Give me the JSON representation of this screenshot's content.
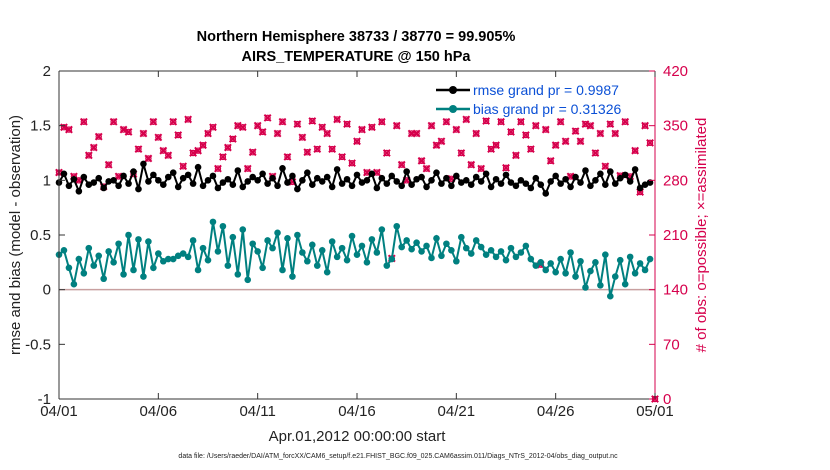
{
  "chart_data": {
    "type": "line",
    "title": "Northern Hemisphere 38733 / 38770 = 99.905%",
    "subtitle": "AIRS_TEMPERATURE @ 150 hPa",
    "xlabel": "Apr.01,2012 00:00:00 start",
    "ylabel": "rmse and bias (model - observation)",
    "ylabel_right": "# of obs: o=possible; ×=assimilated",
    "footnote": "data file: /Users/raeder/DAI/ATM_forcXX/CAM6_setup/f.e21.FHIST_BGC.f09_025.CAM6assim.011/Diags_NTrS_2012-04/obs_diag_output.nc",
    "xlim": [
      0,
      30
    ],
    "ylim": [
      -1,
      2
    ],
    "ylim_right": [
      0,
      420
    ],
    "x_ticks": [
      0,
      5,
      10,
      15,
      20,
      25,
      30
    ],
    "x_tick_labels": [
      "04/01",
      "04/06",
      "04/11",
      "04/16",
      "04/21",
      "04/26",
      "05/01"
    ],
    "y_ticks": [
      -1,
      -0.5,
      0,
      0.5,
      1,
      1.5,
      2
    ],
    "y_tick_labels": [
      "-1",
      "-0.5",
      "0",
      "0.5",
      "1",
      "1.5",
      "2"
    ],
    "y_ticks_right": [
      0,
      70,
      140,
      210,
      280,
      350,
      420
    ],
    "y_tick_labels_right": [
      "0",
      "70",
      "140",
      "210",
      "280",
      "350",
      "420"
    ],
    "grid": false,
    "legend_position": "top-right",
    "colors": {
      "rmse": "#000000",
      "bias": "#008080",
      "obs": "#d6004c",
      "zero_line": "#c8a0a0",
      "legend_text": "#0b50d6"
    },
    "series": [
      {
        "name": "rmse grand pr = 0.9987",
        "legend_label": "rmse grand pr = 0.9987",
        "axis": "left",
        "x": [
          0.0,
          0.25,
          0.5,
          0.75,
          1.0,
          1.25,
          1.5,
          1.75,
          2.0,
          2.25,
          2.5,
          2.75,
          3.0,
          3.25,
          3.5,
          3.75,
          4.0,
          4.25,
          4.5,
          4.75,
          5.0,
          5.25,
          5.5,
          5.75,
          6.0,
          6.25,
          6.5,
          6.75,
          7.0,
          7.25,
          7.5,
          7.75,
          8.0,
          8.25,
          8.5,
          8.75,
          9.0,
          9.25,
          9.5,
          9.75,
          10.0,
          10.25,
          10.5,
          10.75,
          11.0,
          11.25,
          11.5,
          11.75,
          12.0,
          12.25,
          12.5,
          12.75,
          13.0,
          13.25,
          13.5,
          13.75,
          14.0,
          14.25,
          14.5,
          14.75,
          15.0,
          15.25,
          15.5,
          15.75,
          16.0,
          16.25,
          16.5,
          16.75,
          17.0,
          17.25,
          17.5,
          17.75,
          18.0,
          18.25,
          18.5,
          18.75,
          19.0,
          19.25,
          19.5,
          19.75,
          20.0,
          20.25,
          20.5,
          20.75,
          21.0,
          21.25,
          21.5,
          21.75,
          22.0,
          22.25,
          22.5,
          22.75,
          23.0,
          23.25,
          23.5,
          23.75,
          24.0,
          24.25,
          24.5,
          24.75,
          25.0,
          25.25,
          25.5,
          25.75,
          26.0,
          26.25,
          26.5,
          26.75,
          27.0,
          27.25,
          27.5,
          27.75,
          28.0,
          28.25,
          28.5,
          28.75,
          29.0,
          29.25,
          29.5,
          29.75
        ],
        "values": [
          0.98,
          1.06,
          0.95,
          1.01,
          0.9,
          1.03,
          0.96,
          0.98,
          1.02,
          0.93,
          0.99,
          1.0,
          0.95,
          1.04,
          0.97,
          1.08,
          0.92,
          1.15,
          0.99,
          1.05,
          1.0,
          0.96,
          1.03,
          1.07,
          0.94,
          1.02,
          1.05,
          0.97,
          1.12,
          0.95,
          1.0,
          1.04,
          0.93,
          0.98,
          1.01,
          0.96,
          1.09,
          0.94,
          0.99,
          1.03,
          1.0,
          1.06,
          0.97,
          1.02,
          0.95,
          1.11,
          0.98,
          1.04,
          0.92,
          1.0,
          1.07,
          0.96,
          1.02,
          0.99,
          1.03,
          0.94,
          1.1,
          0.97,
          1.01,
          0.95,
          1.05,
          0.98,
          1.0,
          1.06,
          0.93,
          1.02,
          0.97,
          1.04,
          0.99,
          0.95,
          1.08,
          0.96,
          1.01,
          1.03,
          0.94,
          1.0,
          1.07,
          0.97,
          1.02,
          0.95,
          1.04,
          0.98,
          1.0,
          0.96,
          1.03,
          0.99,
          1.06,
          0.94,
          1.01,
          0.97,
          1.05,
          0.98,
          0.95,
          1.0,
          0.97,
          0.93,
          1.02,
          0.96,
          0.88,
          0.99,
          1.04,
          0.97,
          1.01,
          0.94,
          1.03,
          0.98,
          1.09,
          0.95,
          1.0,
          1.06,
          0.96,
          1.08,
          0.97,
          1.02,
          1.05,
          0.99,
          1.1,
          0.93,
          0.96,
          0.98
        ],
        "marker": "filled-circle"
      },
      {
        "name": "bias grand pr = 0.31326",
        "legend_label": "bias grand pr = 0.31326",
        "axis": "left",
        "x": [
          0.0,
          0.25,
          0.5,
          0.75,
          1.0,
          1.25,
          1.5,
          1.75,
          2.0,
          2.25,
          2.5,
          2.75,
          3.0,
          3.25,
          3.5,
          3.75,
          4.0,
          4.25,
          4.5,
          4.75,
          5.0,
          5.25,
          5.5,
          5.75,
          6.0,
          6.25,
          6.5,
          6.75,
          7.0,
          7.25,
          7.5,
          7.75,
          8.0,
          8.25,
          8.5,
          8.75,
          9.0,
          9.25,
          9.5,
          9.75,
          10.0,
          10.25,
          10.5,
          10.75,
          11.0,
          11.25,
          11.5,
          11.75,
          12.0,
          12.25,
          12.5,
          12.75,
          13.0,
          13.25,
          13.5,
          13.75,
          14.0,
          14.25,
          14.5,
          14.75,
          15.0,
          15.25,
          15.5,
          15.75,
          16.0,
          16.25,
          16.5,
          16.75,
          17.0,
          17.25,
          17.5,
          17.75,
          18.0,
          18.25,
          18.5,
          18.75,
          19.0,
          19.25,
          19.5,
          19.75,
          20.0,
          20.25,
          20.5,
          20.75,
          21.0,
          21.25,
          21.5,
          21.75,
          22.0,
          22.25,
          22.5,
          22.75,
          23.0,
          23.25,
          23.5,
          23.75,
          24.0,
          24.25,
          24.5,
          24.75,
          25.0,
          25.25,
          25.5,
          25.75,
          26.0,
          26.25,
          26.5,
          26.75,
          27.0,
          27.25,
          27.5,
          27.75,
          28.0,
          28.25,
          28.5,
          28.75,
          29.0,
          29.25,
          29.5,
          29.75
        ],
        "values": [
          0.32,
          0.36,
          0.2,
          0.05,
          0.28,
          0.15,
          0.38,
          0.22,
          0.31,
          0.1,
          0.35,
          0.25,
          0.42,
          0.14,
          0.5,
          0.18,
          0.46,
          0.12,
          0.44,
          0.2,
          0.33,
          0.26,
          0.28,
          0.28,
          0.31,
          0.33,
          0.3,
          0.45,
          0.18,
          0.38,
          0.27,
          0.62,
          0.35,
          0.58,
          0.22,
          0.48,
          0.14,
          0.55,
          0.09,
          0.42,
          0.35,
          0.2,
          0.45,
          0.38,
          0.52,
          0.18,
          0.47,
          0.12,
          0.5,
          0.34,
          0.26,
          0.41,
          0.22,
          0.36,
          0.16,
          0.44,
          0.3,
          0.38,
          0.27,
          0.49,
          0.32,
          0.4,
          0.25,
          0.46,
          0.34,
          0.55,
          0.22,
          0.28,
          0.58,
          0.39,
          0.45,
          0.37,
          0.43,
          0.35,
          0.4,
          0.29,
          0.47,
          0.31,
          0.42,
          0.36,
          0.26,
          0.48,
          0.38,
          0.33,
          0.45,
          0.39,
          0.32,
          0.36,
          0.3,
          0.35,
          0.27,
          0.38,
          0.3,
          0.34,
          0.4,
          0.28,
          0.22,
          0.25,
          0.18,
          0.24,
          0.16,
          0.28,
          0.15,
          0.34,
          0.12,
          0.26,
          0.02,
          0.17,
          0.25,
          0.04,
          0.32,
          -0.06,
          0.12,
          0.27,
          0.05,
          0.3,
          0.15,
          0.24,
          0.18,
          0.28
        ],
        "marker": "filled-circle"
      },
      {
        "name": "",
        "axis": "right",
        "marker": "x",
        "x": [
          0.0,
          0.25,
          0.5,
          0.75,
          1.0,
          1.25,
          1.5,
          1.75,
          2.0,
          2.25,
          2.5,
          2.75,
          3.0,
          3.25,
          3.5,
          3.75,
          4.0,
          4.25,
          4.5,
          4.75,
          5.0,
          5.25,
          5.5,
          5.75,
          6.0,
          6.25,
          6.5,
          6.75,
          7.0,
          7.25,
          7.5,
          7.75,
          8.0,
          8.25,
          8.5,
          8.75,
          9.0,
          9.25,
          9.5,
          9.75,
          10.0,
          10.25,
          10.5,
          10.75,
          11.0,
          11.25,
          11.5,
          11.75,
          12.0,
          12.25,
          12.5,
          12.75,
          13.0,
          13.25,
          13.5,
          13.75,
          14.0,
          14.25,
          14.5,
          14.75,
          15.0,
          15.25,
          15.5,
          15.75,
          16.0,
          16.25,
          16.5,
          16.75,
          17.0,
          17.25,
          17.5,
          17.75,
          18.0,
          18.25,
          18.5,
          18.75,
          19.0,
          19.25,
          19.5,
          19.75,
          20.0,
          20.25,
          20.5,
          20.75,
          21.0,
          21.25,
          21.5,
          21.75,
          22.0,
          22.25,
          22.5,
          22.75,
          23.0,
          23.25,
          23.5,
          23.75,
          24.0,
          24.25,
          24.5,
          24.75,
          25.0,
          25.25,
          25.5,
          25.75,
          26.0,
          26.25,
          26.5,
          26.75,
          27.0,
          27.25,
          27.5,
          27.75,
          28.0,
          28.25,
          28.5,
          28.75,
          29.0,
          29.25,
          29.5,
          29.75,
          30.0
        ],
        "values": [
          290,
          348,
          345,
          285,
          280,
          355,
          312,
          322,
          336,
          272,
          300,
          355,
          285,
          345,
          342,
          288,
          320,
          340,
          308,
          355,
          335,
          318,
          312,
          355,
          338,
          298,
          358,
          315,
          318,
          325,
          340,
          348,
          295,
          310,
          322,
          333,
          350,
          348,
          295,
          316,
          350,
          342,
          360,
          285,
          340,
          355,
          310,
          278,
          352,
          335,
          316,
          356,
          320,
          348,
          340,
          320,
          358,
          310,
          352,
          302,
          330,
          345,
          290,
          348,
          290,
          355,
          315,
          180,
          350,
          300,
          280,
          340,
          340,
          305,
          295,
          350,
          325,
          330,
          355,
          282,
          345,
          315,
          358,
          300,
          340,
          295,
          356,
          320,
          325,
          355,
          296,
          342,
          312,
          355,
          338,
          320,
          350,
          172,
          345,
          305,
          325,
          355,
          330,
          285,
          343,
          330,
          352,
          350,
          315,
          340,
          298,
          352,
          340,
          286,
          355,
          285,
          318,
          265,
          350,
          328,
          0
        ]
      }
    ]
  }
}
